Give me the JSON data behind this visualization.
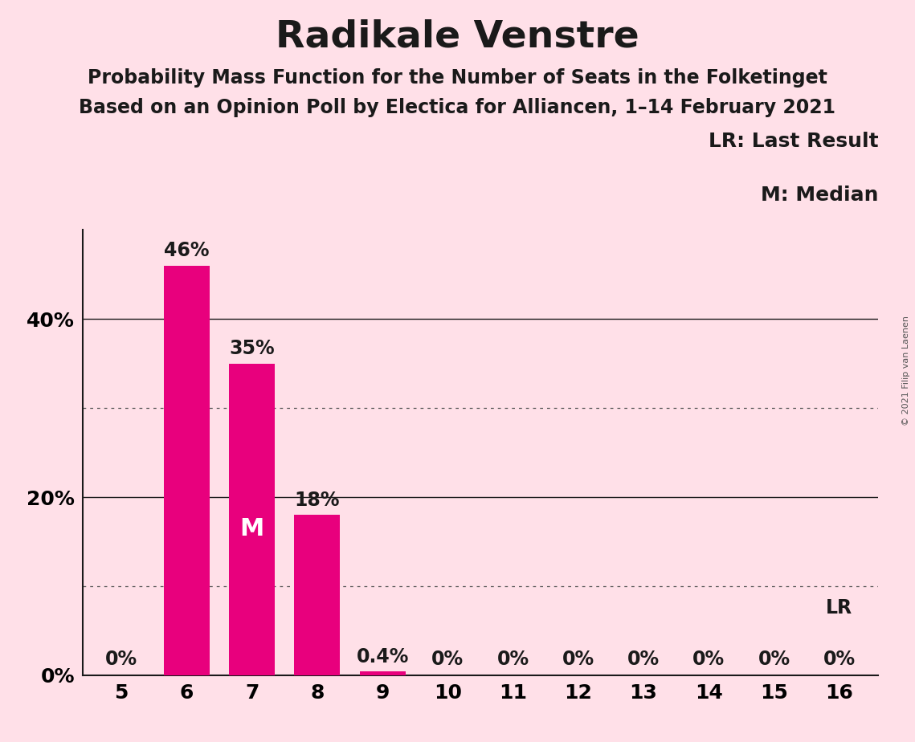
{
  "title": "Radikale Venstre",
  "subtitle1": "Probability Mass Function for the Number of Seats in the Folketinget",
  "subtitle2": "Based on an Opinion Poll by Electica for Alliancen, 1–14 February 2021",
  "copyright": "© 2021 Filip van Laenen",
  "categories": [
    5,
    6,
    7,
    8,
    9,
    10,
    11,
    12,
    13,
    14,
    15,
    16
  ],
  "values": [
    0.0,
    46.0,
    35.0,
    18.0,
    0.4,
    0.0,
    0.0,
    0.0,
    0.0,
    0.0,
    0.0,
    0.0
  ],
  "bar_color": "#E8007D",
  "background_color": "#FFE0E8",
  "label_values": [
    "0%",
    "46%",
    "35%",
    "18%",
    "0.4%",
    "0%",
    "0%",
    "0%",
    "0%",
    "0%",
    "0%",
    "0%"
  ],
  "median_bar": 7,
  "median_label": "M",
  "lr_bar": 16,
  "lr_label": "LR",
  "ylim": [
    0,
    50
  ],
  "yticks": [
    0,
    10,
    20,
    30,
    40,
    50
  ],
  "ytick_labels": [
    "0%",
    "",
    "20%",
    "",
    "40%",
    ""
  ],
  "solid_gridlines": [
    20,
    40
  ],
  "dotted_gridlines": [
    10,
    30
  ],
  "legend_text1": "LR: Last Result",
  "legend_text2": "M: Median",
  "title_fontsize": 34,
  "subtitle_fontsize": 17,
  "axis_fontsize": 18,
  "bar_label_fontsize": 17,
  "legend_fontsize": 18,
  "median_label_fontsize": 22,
  "lr_label_fontsize": 17
}
